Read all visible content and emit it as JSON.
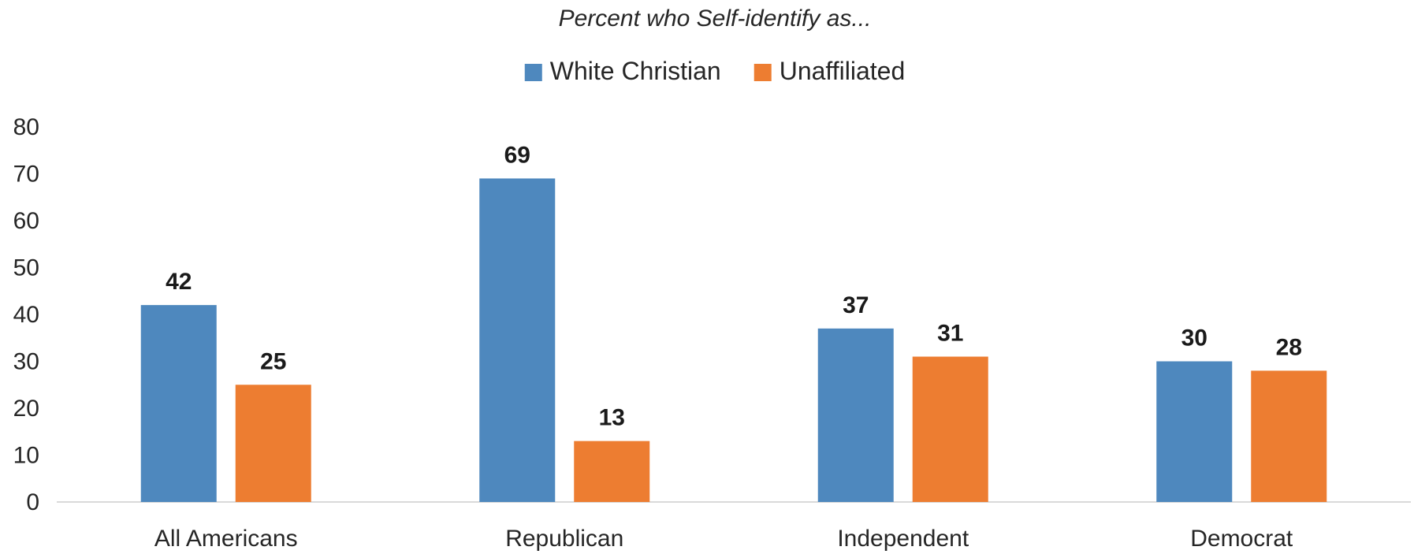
{
  "chart_data": {
    "type": "bar",
    "title": "Percent who Self-identify as...",
    "xlabel": "",
    "ylabel": "",
    "categories": [
      "All Americans",
      "Republican",
      "Independent",
      "Democrat"
    ],
    "series": [
      {
        "name": "White Christian",
        "color": "#4e88be",
        "values": [
          42,
          69,
          37,
          30
        ]
      },
      {
        "name": "Unaffiliated",
        "color": "#ed7d31",
        "values": [
          25,
          13,
          31,
          28
        ]
      }
    ],
    "ylim": [
      0,
      80
    ],
    "yticks": [
      "0",
      "10",
      "20",
      "30",
      "40",
      "50",
      "60",
      "70",
      "80"
    ],
    "grid": false,
    "legend_position": "top-center",
    "data_labels": true
  }
}
